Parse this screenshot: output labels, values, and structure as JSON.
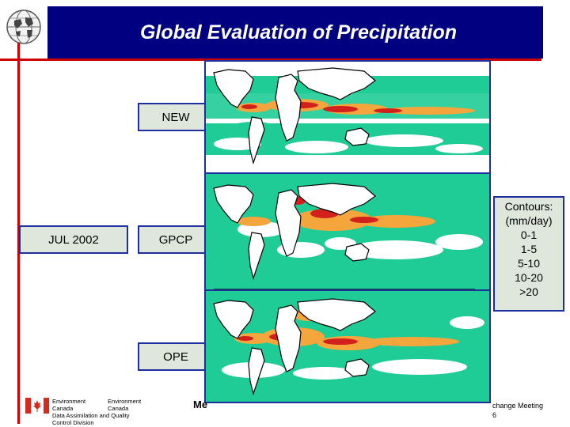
{
  "slide": {
    "title": "Global Evaluation of Precipitation",
    "month_label": "JUL 2002",
    "panels": [
      {
        "label": "NEW"
      },
      {
        "label": "GPCP"
      },
      {
        "label": "OPE"
      }
    ],
    "legend": {
      "title": "Contours:",
      "units": "(mm/day)",
      "ranges": [
        "0-1",
        "1-5",
        "5-10",
        "10-20",
        ">20"
      ]
    },
    "footer": {
      "org_en_1": "Environment",
      "org_en_2": "Canada",
      "org_fr_1": "Environment",
      "org_fr_2": "Canada",
      "division_1": "Data Assimilation and Quality",
      "division_2": "Control Division",
      "meeting_fragment": "Me",
      "right_fragment": "change Meeting",
      "page_fragment": "6"
    }
  },
  "colors": {
    "title_bar": "#000080",
    "accent_red": "#d00000",
    "border_blue": "#1c2f9c",
    "label_bg": "#dfe7dc",
    "precip_teal": "#1fcc96",
    "precip_orange": "#f4a53b",
    "precip_red": "#d2201c"
  }
}
